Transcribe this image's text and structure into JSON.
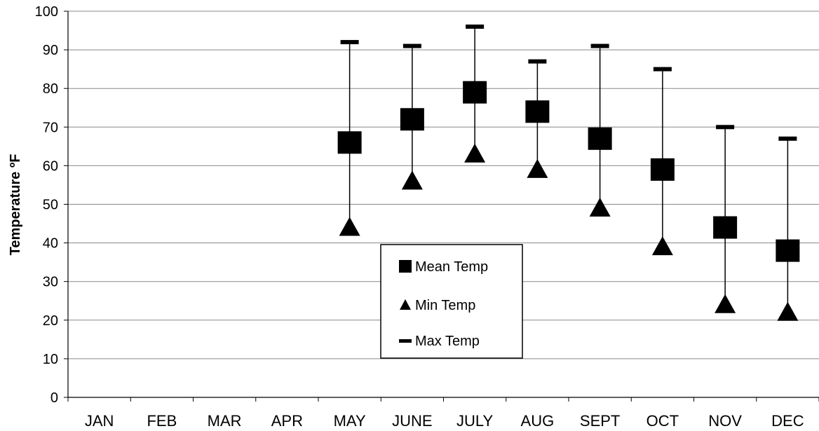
{
  "chart_data": {
    "type": "scatter",
    "ylabel": "Temperature ºF",
    "xlabel": "",
    "ylim": [
      0,
      100
    ],
    "yticks": [
      0,
      10,
      20,
      30,
      40,
      50,
      60,
      70,
      80,
      90,
      100
    ],
    "categories": [
      "JAN",
      "FEB",
      "MAR",
      "APR",
      "MAY",
      "JUNE",
      "JULY",
      "AUG",
      "SEPT",
      "OCT",
      "NOV",
      "DEC"
    ],
    "grid": true,
    "legend_position": "center",
    "series": [
      {
        "name": "Mean Temp",
        "marker": "square",
        "values": [
          null,
          null,
          null,
          null,
          66,
          72,
          79,
          74,
          67,
          59,
          44,
          38
        ]
      },
      {
        "name": "Min Temp",
        "marker": "triangle",
        "values": [
          null,
          null,
          null,
          null,
          44,
          56,
          63,
          59,
          49,
          39,
          24,
          22
        ]
      },
      {
        "name": "Max Temp",
        "marker": "dash",
        "values": [
          null,
          null,
          null,
          null,
          92,
          91,
          96,
          87,
          91,
          85,
          70,
          67
        ]
      }
    ],
    "colors": {
      "marker": "#000000",
      "grid": "#888888"
    }
  }
}
